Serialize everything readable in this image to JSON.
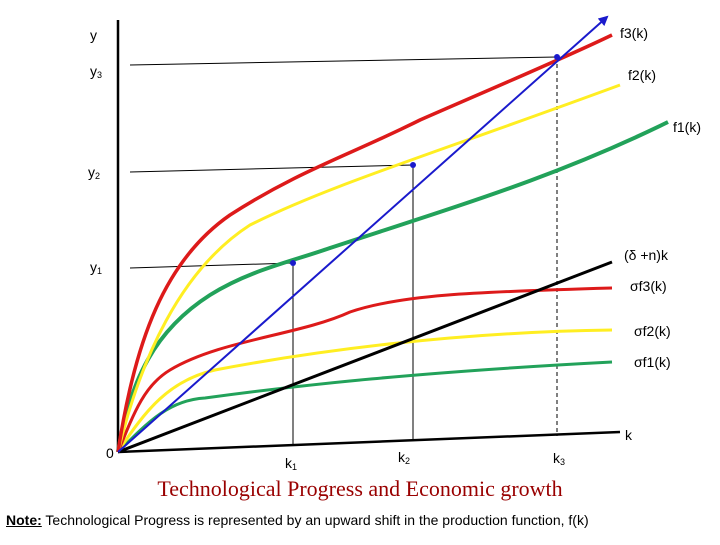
{
  "labels": {
    "y_axis": "y",
    "y3": {
      "base": "y",
      "sub": "3"
    },
    "y2": {
      "base": "y",
      "sub": "2"
    },
    "y1": {
      "base": "y",
      "sub": "1"
    },
    "origin": "0",
    "k_axis": "k",
    "k1": {
      "base": "k",
      "sub": "1"
    },
    "k2": {
      "base": "k",
      "sub": "2"
    },
    "k3": {
      "base": "k",
      "sub": "3"
    },
    "f3": "f3(k)",
    "f2": "f2(k)",
    "f1": "f1(k)",
    "depreciation": "(δ +n)k",
    "sf3": "σf3(k)",
    "sf2": "σf2(k)",
    "sf1": "σf1(k)"
  },
  "title": "Technological Progress and Economic growth",
  "note": {
    "key": "Note:",
    "text": " Technological Progress is represented by an upward shift in the production function, f(k)"
  },
  "colors": {
    "f3": "#dd1a1a",
    "f2": "#ffee22",
    "f1": "#22a25a",
    "depreciation_line": "#000000",
    "arrow": "#1a1acc",
    "axes": "#000000",
    "title": "#990000"
  }
}
